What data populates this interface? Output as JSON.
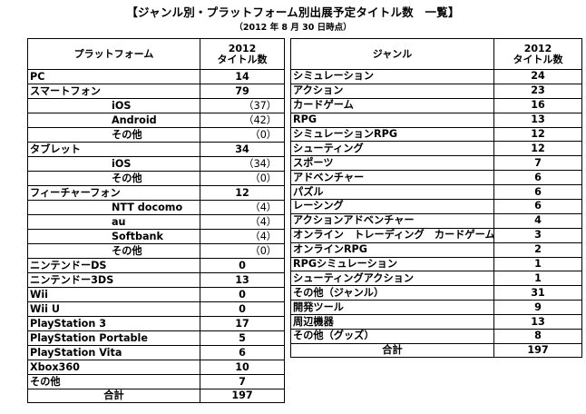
{
  "header": {
    "title": "【ジャンル別・プラットフォーム別出展予定タイトル数　一覧】",
    "subtitle": "（2012 年 8 月 30 日時点）"
  },
  "platform_table": {
    "name_header": "プラットフォーム",
    "val_header_line1": "2012",
    "val_header_line2": "タイトル数",
    "rows": [
      {
        "name": "PC",
        "value": "14"
      },
      {
        "name": "スマートフォン",
        "value": "79"
      },
      {
        "name": "iOS",
        "value": "（37）"
      },
      {
        "name": "Android",
        "value": "（42）"
      },
      {
        "name": "その他",
        "value": "（0）"
      },
      {
        "name": "タブレット",
        "value": "34"
      },
      {
        "name": "iOS",
        "value": "（34）"
      },
      {
        "name": "その他",
        "value": "（0）"
      },
      {
        "name": "フィーチャーフォン",
        "value": "12"
      },
      {
        "name": "NTT docomo",
        "value": "（4）"
      },
      {
        "name": "au",
        "value": "（4）"
      },
      {
        "name": "Softbank",
        "value": "（4）"
      },
      {
        "name": "その他",
        "value": "（0）"
      },
      {
        "name": "ニンテンドーDS",
        "value": "0"
      },
      {
        "name": "ニンテンドー3DS",
        "value": "13"
      },
      {
        "name": "Wii",
        "value": "0"
      },
      {
        "name": "Wii U",
        "value": "0"
      },
      {
        "name": "PlayStation 3",
        "value": "17"
      },
      {
        "name": "PlayStation Portable",
        "value": "5"
      },
      {
        "name": "PlayStation Vita",
        "value": "6"
      },
      {
        "name": "Xbox360",
        "value": "10"
      },
      {
        "name": "その他",
        "value": "7"
      }
    ],
    "total_label": "合計",
    "total_value": "197"
  },
  "genre_table": {
    "name_header": "ジャンル",
    "val_header_line1": "2012",
    "val_header_line2": "タイトル数",
    "rows": [
      {
        "name": "シミュレーション",
        "value": "24"
      },
      {
        "name": "アクション",
        "value": "23"
      },
      {
        "name": "カードゲーム",
        "value": "16"
      },
      {
        "name": "RPG",
        "value": "13"
      },
      {
        "name": "シミュレーションRPG",
        "value": "12"
      },
      {
        "name": "シューティング",
        "value": "12"
      },
      {
        "name": "スポーツ",
        "value": "7"
      },
      {
        "name": "アドベンチャー",
        "value": "6"
      },
      {
        "name": "パズル",
        "value": "6"
      },
      {
        "name": "レーシング",
        "value": "6"
      },
      {
        "name": "アクションアドベンチャー",
        "value": "4"
      },
      {
        "name": "オンライン　トレーディング　カードゲーム",
        "value": "3"
      },
      {
        "name": "オンラインRPG",
        "value": "2"
      },
      {
        "name": "RPGシミュレーション",
        "value": "1"
      },
      {
        "name": "シューティングアクション",
        "value": "1"
      },
      {
        "name": "その他（ジャンル）",
        "value": "31"
      },
      {
        "name": "開発ツール",
        "value": "9"
      },
      {
        "name": "周辺機器",
        "value": "13"
      },
      {
        "name": "その他（グッズ）",
        "value": "8"
      }
    ],
    "total_label": "合計",
    "total_value": "197"
  }
}
